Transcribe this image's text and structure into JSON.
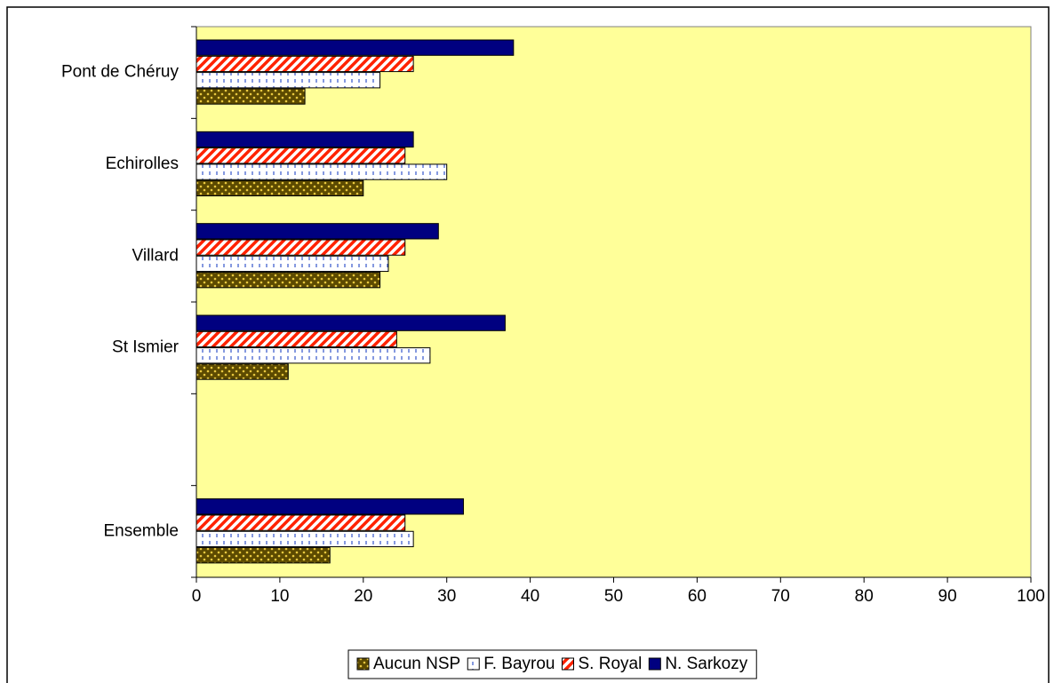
{
  "chart_data": {
    "type": "hbar",
    "categories": [
      "Pont de Chéruy",
      "Echirolles",
      "Villard",
      "St Ismier",
      null,
      "Ensemble"
    ],
    "series": [
      {
        "name": "Aucun NSP",
        "color": "#5c4a00",
        "pattern": "dots",
        "values": [
          13,
          20,
          22,
          11,
          null,
          16
        ]
      },
      {
        "name": "F. Bayrou",
        "color": "#3355cc",
        "pattern": "dashes",
        "values": [
          22,
          30,
          23,
          28,
          null,
          26
        ]
      },
      {
        "name": "S. Royal",
        "color": "#ff2200",
        "pattern": "stripes",
        "values": [
          26,
          25,
          25,
          24,
          null,
          25
        ]
      },
      {
        "name": "N. Sarkozy",
        "color": "#000080",
        "pattern": "solid",
        "values": [
          38,
          26,
          29,
          37,
          null,
          32
        ]
      }
    ],
    "xlim": [
      0,
      100
    ],
    "xticks": [
      0,
      10,
      20,
      30,
      40,
      50,
      60,
      70,
      80,
      90,
      100
    ],
    "background": "#ffff99",
    "legend": "bottom"
  }
}
